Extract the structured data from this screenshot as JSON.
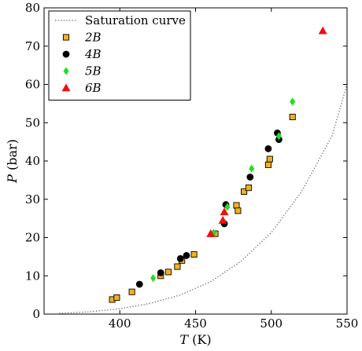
{
  "chart_data": {
    "type": "scatter",
    "xlabel": {
      "symbol": "T",
      "unit": " (K)"
    },
    "ylabel": {
      "symbol": "P",
      "unit": " (bar)"
    },
    "xlim": [
      350,
      550
    ],
    "ylim": [
      0,
      80
    ],
    "xticks": [
      400,
      450,
      500,
      550
    ],
    "yticks": [
      0,
      10,
      20,
      30,
      40,
      50,
      60,
      70,
      80
    ],
    "grid": false,
    "legend": "top-left",
    "curve": {
      "name": "Saturation curve",
      "style": "dotted",
      "color": "#555555",
      "x": [
        360,
        380,
        400,
        420,
        440,
        460,
        480,
        500,
        520,
        540,
        550
      ],
      "y": [
        0.2,
        0.6,
        1.4,
        2.8,
        5.0,
        8.5,
        13.8,
        21.3,
        32.0,
        46.5,
        60.0
      ]
    },
    "series": [
      {
        "name": "2B",
        "marker": "square",
        "color": "#f2b21e",
        "x": [
          395,
          398,
          408,
          427,
          432,
          438,
          441,
          449,
          463,
          477,
          478,
          482,
          485,
          498,
          499,
          514
        ],
        "y": [
          3.8,
          4.3,
          5.8,
          10.0,
          11.0,
          12.4,
          14.0,
          15.6,
          21.0,
          28.4,
          27.0,
          32.0,
          33.0,
          39.0,
          40.5,
          51.5
        ]
      },
      {
        "name": "4B",
        "marker": "circle",
        "color": "#000000",
        "x": [
          413,
          427,
          440,
          444,
          469,
          470,
          486,
          498,
          504,
          505
        ],
        "y": [
          7.8,
          10.8,
          14.5,
          15.3,
          23.6,
          28.6,
          35.8,
          43.2,
          47.3,
          45.6
        ]
      },
      {
        "name": "5B",
        "marker": "diamond",
        "color": "#22dd22",
        "x": [
          422,
          462,
          471,
          487,
          505,
          514
        ],
        "y": [
          9.4,
          21.2,
          28.0,
          38.0,
          46.5,
          55.5
        ]
      },
      {
        "name": "6B",
        "marker": "triangle",
        "color": "#ee1111",
        "x": [
          460,
          468,
          469,
          534
        ],
        "y": [
          21.0,
          24.5,
          26.7,
          74.0
        ]
      }
    ]
  }
}
